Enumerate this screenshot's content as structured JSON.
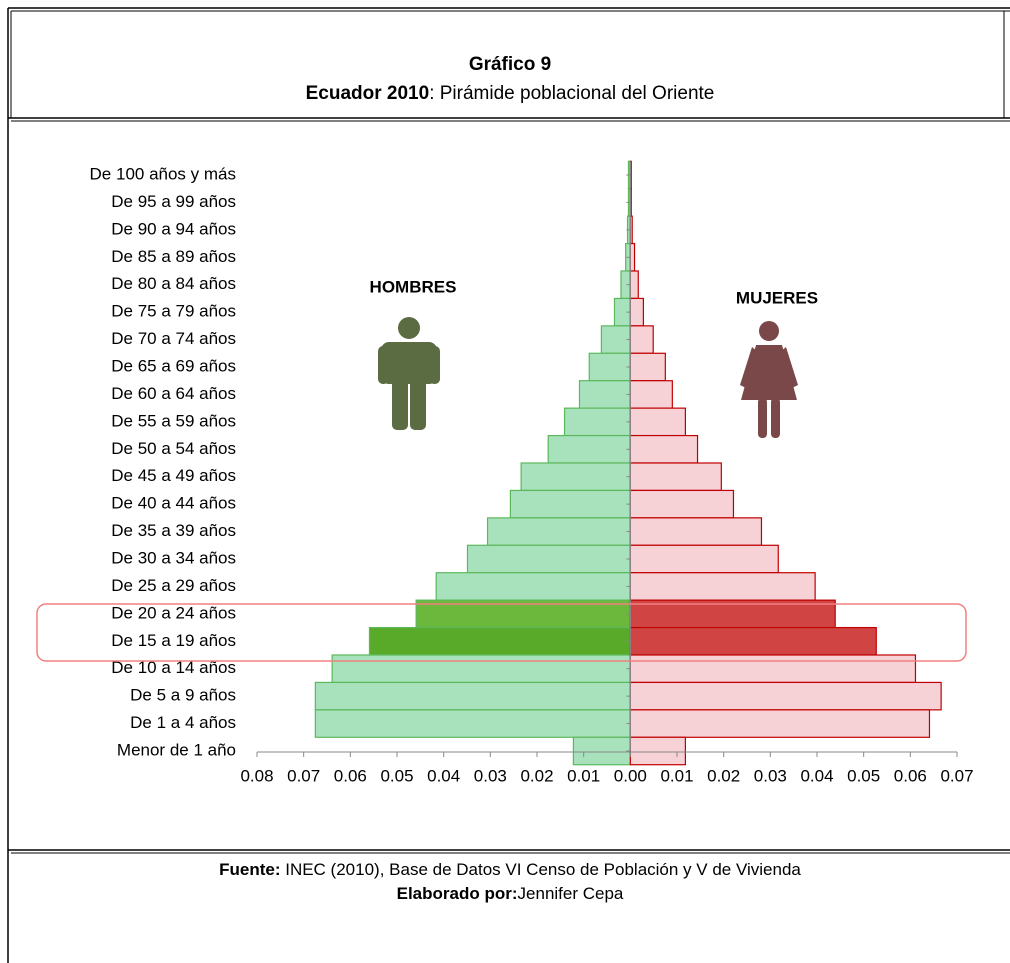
{
  "chart_data": {
    "type": "pyramid",
    "title": "Gráfico 9",
    "subtitle_bold": "Ecuador 2010",
    "subtitle": ": Pirámide poblacional del Oriente",
    "categories": [
      "De 100 años y más",
      "De 95 a 99 años",
      "De 90 a 94 años",
      "De 85 a 89 años",
      "De 80 a 84 años",
      "De 75 a 79 años",
      "De 70 a 74 años",
      "De 65 a 69 años",
      "De 60 a 64 años",
      "De 55 a 59 años",
      "De 50 a 54 años",
      "De 45 a 49 años",
      "De 40 a 44 años",
      "De 35 a 39 años",
      "De 30 a 34 años",
      "De 25 a 29 años",
      "De 20 a 24 años",
      "De 15 a 19 años",
      "De 10 a 14 años",
      "De 5 a 9 años",
      "De 1 a 4 años",
      "Menor de 1 año"
    ],
    "series": [
      {
        "name": "HOMBRES",
        "color": "#a8e2bc",
        "stroke": "#5cb85c",
        "colors": [
          "#a8e2bc",
          "#a8e2bc",
          "#a8e2bc",
          "#a8e2bc",
          "#a8e2bc",
          "#a8e2bc",
          "#a8e2bc",
          "#a8e2bc",
          "#a8e2bc",
          "#a8e2bc",
          "#a8e2bc",
          "#a8e2bc",
          "#a8e2bc",
          "#a8e2bc",
          "#a8e2bc",
          "#a8e2bc",
          "#6cb83c",
          "#5aaa2a",
          "#a8e2bc",
          "#a8e2bc",
          "#a8e2bc",
          "#a8e2bc"
        ],
        "values": [
          -0.0004,
          -0.0004,
          -0.0006,
          -0.001,
          -0.002,
          -0.0034,
          -0.0062,
          -0.0088,
          -0.0109,
          -0.0141,
          -0.0176,
          -0.0234,
          -0.0257,
          -0.0306,
          -0.0349,
          -0.0416,
          -0.0459,
          -0.0559,
          -0.0639,
          -0.0675,
          -0.0675,
          -0.0122
        ]
      },
      {
        "name": "MUJERES",
        "color": "#f6d2d6",
        "stroke": "#c00000",
        "colors": [
          "#f6d2d6",
          "#f6d2d6",
          "#f6d2d6",
          "#f6d2d6",
          "#f6d2d6",
          "#f6d2d6",
          "#f6d2d6",
          "#f6d2d6",
          "#f6d2d6",
          "#f6d2d6",
          "#f6d2d6",
          "#f6d2d6",
          "#f6d2d6",
          "#f6d2d6",
          "#f6d2d6",
          "#f6d2d6",
          "#d04444",
          "#d04444",
          "#f6d2d6",
          "#f6d2d6",
          "#f6d2d6",
          "#f6d2d6"
        ],
        "values": [
          0.0002,
          0.0002,
          0.0004,
          0.0009,
          0.0017,
          0.0028,
          0.0049,
          0.0075,
          0.009,
          0.0118,
          0.0144,
          0.0195,
          0.0221,
          0.0281,
          0.0317,
          0.0396,
          0.0439,
          0.0527,
          0.0611,
          0.0666,
          0.0641,
          0.0118
        ]
      }
    ],
    "xlim": [
      -0.08,
      0.07
    ],
    "xticks": [
      {
        "value": -0.08,
        "label": "0.08"
      },
      {
        "value": -0.07,
        "label": "0.07"
      },
      {
        "value": -0.06,
        "label": "0.06"
      },
      {
        "value": -0.05,
        "label": "0.05"
      },
      {
        "value": -0.04,
        "label": "0.04"
      },
      {
        "value": -0.03,
        "label": "0.03"
      },
      {
        "value": -0.02,
        "label": "0.02"
      },
      {
        "value": -0.01,
        "label": "0.01"
      },
      {
        "value": 0,
        "label": "0.00"
      },
      {
        "value": 0.01,
        "label": "0.01"
      },
      {
        "value": 0.02,
        "label": "0.02"
      },
      {
        "value": 0.03,
        "label": "0.03"
      },
      {
        "value": 0.04,
        "label": "0.04"
      },
      {
        "value": 0.05,
        "label": "0.05"
      },
      {
        "value": 0.06,
        "label": "0.06"
      },
      {
        "value": 0.07,
        "label": "0.07"
      }
    ],
    "source_bold": "Fuente:",
    "source": " INEC (2010), Base de Datos VI Censo de Población y V de Vivienda",
    "author_bold": "Elaborado por:",
    "author": "Jennifer Cepa"
  }
}
